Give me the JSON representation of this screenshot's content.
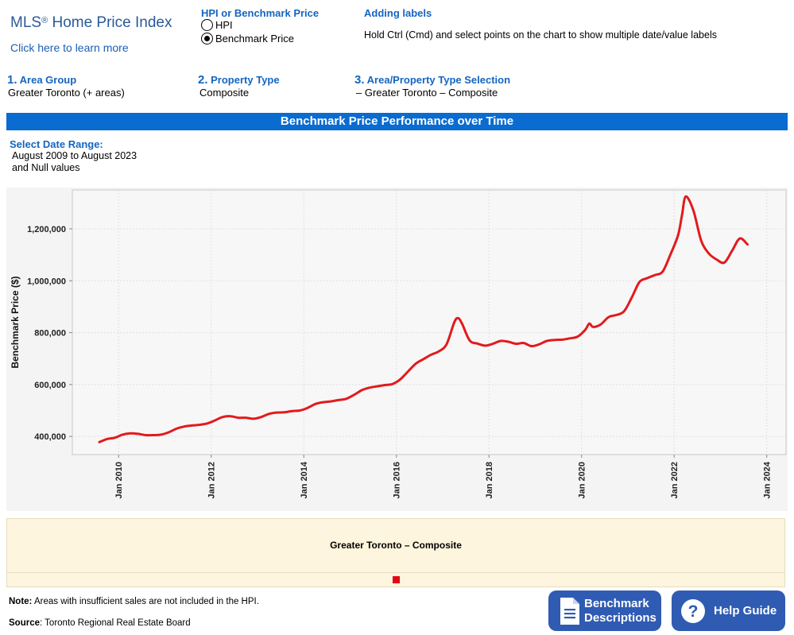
{
  "header": {
    "title": "MLS",
    "title_mark": "®",
    "title_rest": " Home Price Index",
    "learn_link": "Click here to learn more"
  },
  "measure": {
    "heading": "HPI or Benchmark Price",
    "options": [
      {
        "label": "HPI",
        "selected": false
      },
      {
        "label": "Benchmark Price",
        "selected": true
      }
    ]
  },
  "labels_help": {
    "heading": "Adding labels",
    "text": "Hold Ctrl (Cmd) and select points on the chart to show multiple date/value labels"
  },
  "steps": [
    {
      "num": "1.",
      "label": "Area Group",
      "value": "Greater Toronto (+ areas)"
    },
    {
      "num": "2.",
      "label": "Property Type",
      "value": "Composite"
    },
    {
      "num": "3.",
      "label": "Area/Property Type Selection",
      "value": "– Greater Toronto – Composite"
    }
  ],
  "banner": "Benchmark Price Performance over Time",
  "date_range": {
    "heading": "Select Date Range:",
    "line1": "August 2009 to August 2023",
    "line2": "and Null values"
  },
  "chart_data": {
    "type": "line",
    "title": "",
    "xlabel": "",
    "ylabel": "Benchmark Price ($)",
    "x_ticks": [
      "Jan 2010",
      "Jan 2012",
      "Jan 2014",
      "Jan 2016",
      "Jan 2018",
      "Jan 2020",
      "Jan 2022",
      "Jan 2024"
    ],
    "y_ticks": [
      "400,000",
      "600,000",
      "800,000",
      "1,000,000",
      "1,200,000"
    ],
    "xlim": [
      "2009-01",
      "2024-06"
    ],
    "ylim": [
      330000,
      1350000
    ],
    "grid": true,
    "series": [
      {
        "name": "Greater Toronto – Composite",
        "color": "#e31a1c",
        "x": [
          "2009-08",
          "2009-10",
          "2009-12",
          "2010-02",
          "2010-04",
          "2010-06",
          "2010-08",
          "2010-10",
          "2010-12",
          "2011-02",
          "2011-04",
          "2011-06",
          "2011-08",
          "2011-10",
          "2011-12",
          "2012-02",
          "2012-04",
          "2012-06",
          "2012-08",
          "2012-10",
          "2012-12",
          "2013-02",
          "2013-04",
          "2013-06",
          "2013-08",
          "2013-10",
          "2013-12",
          "2014-02",
          "2014-04",
          "2014-06",
          "2014-08",
          "2014-10",
          "2014-12",
          "2015-02",
          "2015-04",
          "2015-06",
          "2015-08",
          "2015-10",
          "2015-12",
          "2016-02",
          "2016-04",
          "2016-06",
          "2016-08",
          "2016-10",
          "2016-12",
          "2017-02",
          "2017-04",
          "2017-05",
          "2017-06",
          "2017-08",
          "2017-10",
          "2017-12",
          "2018-02",
          "2018-04",
          "2018-06",
          "2018-08",
          "2018-10",
          "2018-12",
          "2019-02",
          "2019-04",
          "2019-06",
          "2019-08",
          "2019-10",
          "2019-12",
          "2020-02",
          "2020-03",
          "2020-04",
          "2020-06",
          "2020-08",
          "2020-10",
          "2020-12",
          "2021-02",
          "2021-04",
          "2021-06",
          "2021-08",
          "2021-10",
          "2021-12",
          "2022-02",
          "2022-03",
          "2022-04",
          "2022-06",
          "2022-08",
          "2022-10",
          "2022-12",
          "2023-02",
          "2023-04",
          "2023-06",
          "2023-08"
        ],
        "values": [
          378000,
          390000,
          395000,
          407000,
          412000,
          410000,
          405000,
          405000,
          407000,
          416000,
          430000,
          438000,
          442000,
          445000,
          450000,
          462000,
          475000,
          478000,
          472000,
          472000,
          468000,
          475000,
          487000,
          492000,
          493000,
          498000,
          500000,
          510000,
          525000,
          532000,
          535000,
          540000,
          545000,
          560000,
          578000,
          588000,
          593000,
          598000,
          602000,
          620000,
          650000,
          680000,
          698000,
          715000,
          728000,
          755000,
          840000,
          856000,
          835000,
          770000,
          758000,
          750000,
          757000,
          768000,
          765000,
          757000,
          760000,
          748000,
          755000,
          768000,
          772000,
          773000,
          778000,
          785000,
          812000,
          835000,
          822000,
          832000,
          860000,
          868000,
          882000,
          935000,
          995000,
          1010000,
          1022000,
          1035000,
          1100000,
          1175000,
          1250000,
          1325000,
          1270000,
          1155000,
          1105000,
          1082000,
          1070000,
          1115000,
          1163000,
          1140000
        ]
      }
    ]
  },
  "legend": {
    "title": "Greater Toronto – Composite",
    "swatch_color": "#e30613"
  },
  "footer": {
    "note_label": "Note:",
    "note_text": " Areas with insufficient sales are not included in the HPI.",
    "source_label": "Source",
    "source_text": ": Toronto Regional Real Estate Board"
  },
  "buttons": {
    "benchmark_line1": "Benchmark",
    "benchmark_line2": "Descriptions",
    "benchmark_icon": "document-icon",
    "help": "Help Guide",
    "help_icon": "question-icon"
  },
  "colors": {
    "accent": "#1565c0",
    "banner": "#0a6bd0",
    "button": "#2f5bb3",
    "legend_bg": "#fdf5dd"
  }
}
